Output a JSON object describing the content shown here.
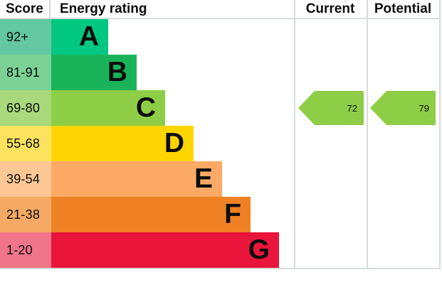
{
  "header": {
    "score": "Score",
    "energy_rating": "Energy rating",
    "current": "Current",
    "potential": "Potential"
  },
  "bands": [
    {
      "score": "92+",
      "letter": "A",
      "bar_color": "#00c781",
      "score_color": "#63c7a1"
    },
    {
      "score": "81-91",
      "letter": "B",
      "bar_color": "#19b459",
      "score_color": "#7bd294"
    },
    {
      "score": "69-80",
      "letter": "C",
      "bar_color": "#8dce46",
      "score_color": "#a9d87d"
    },
    {
      "score": "55-68",
      "letter": "D",
      "bar_color": "#ffd500",
      "score_color": "#fbe25f"
    },
    {
      "score": "39-54",
      "letter": "E",
      "bar_color": "#fcaa65",
      "score_color": "#fcc795"
    },
    {
      "score": "21-38",
      "letter": "F",
      "bar_color": "#ef8023",
      "score_color": "#f4aa64"
    },
    {
      "score": "1-20",
      "letter": "G",
      "bar_color": "#e9153b",
      "score_color": "#f1758a"
    }
  ],
  "arrows": {
    "current": {
      "value": "72",
      "color": "#8dce46"
    },
    "potential": {
      "value": "79",
      "color": "#8dce46"
    }
  },
  "chart_data": {
    "type": "bar",
    "title": "Energy rating",
    "columns": [
      "Score",
      "Energy rating",
      "Current",
      "Potential"
    ],
    "categories": [
      "A",
      "B",
      "C",
      "D",
      "E",
      "F",
      "G"
    ],
    "score_ranges": [
      "92+",
      "81-91",
      "69-80",
      "55-68",
      "39-54",
      "21-38",
      "1-20"
    ],
    "band_colors": [
      "#00c781",
      "#19b459",
      "#8dce46",
      "#ffd500",
      "#fcaa65",
      "#ef8023",
      "#e9153b"
    ],
    "current": {
      "value": 72,
      "band": "C"
    },
    "potential": {
      "value": 79,
      "band": "C"
    },
    "legend_position": "none",
    "grid": false
  }
}
